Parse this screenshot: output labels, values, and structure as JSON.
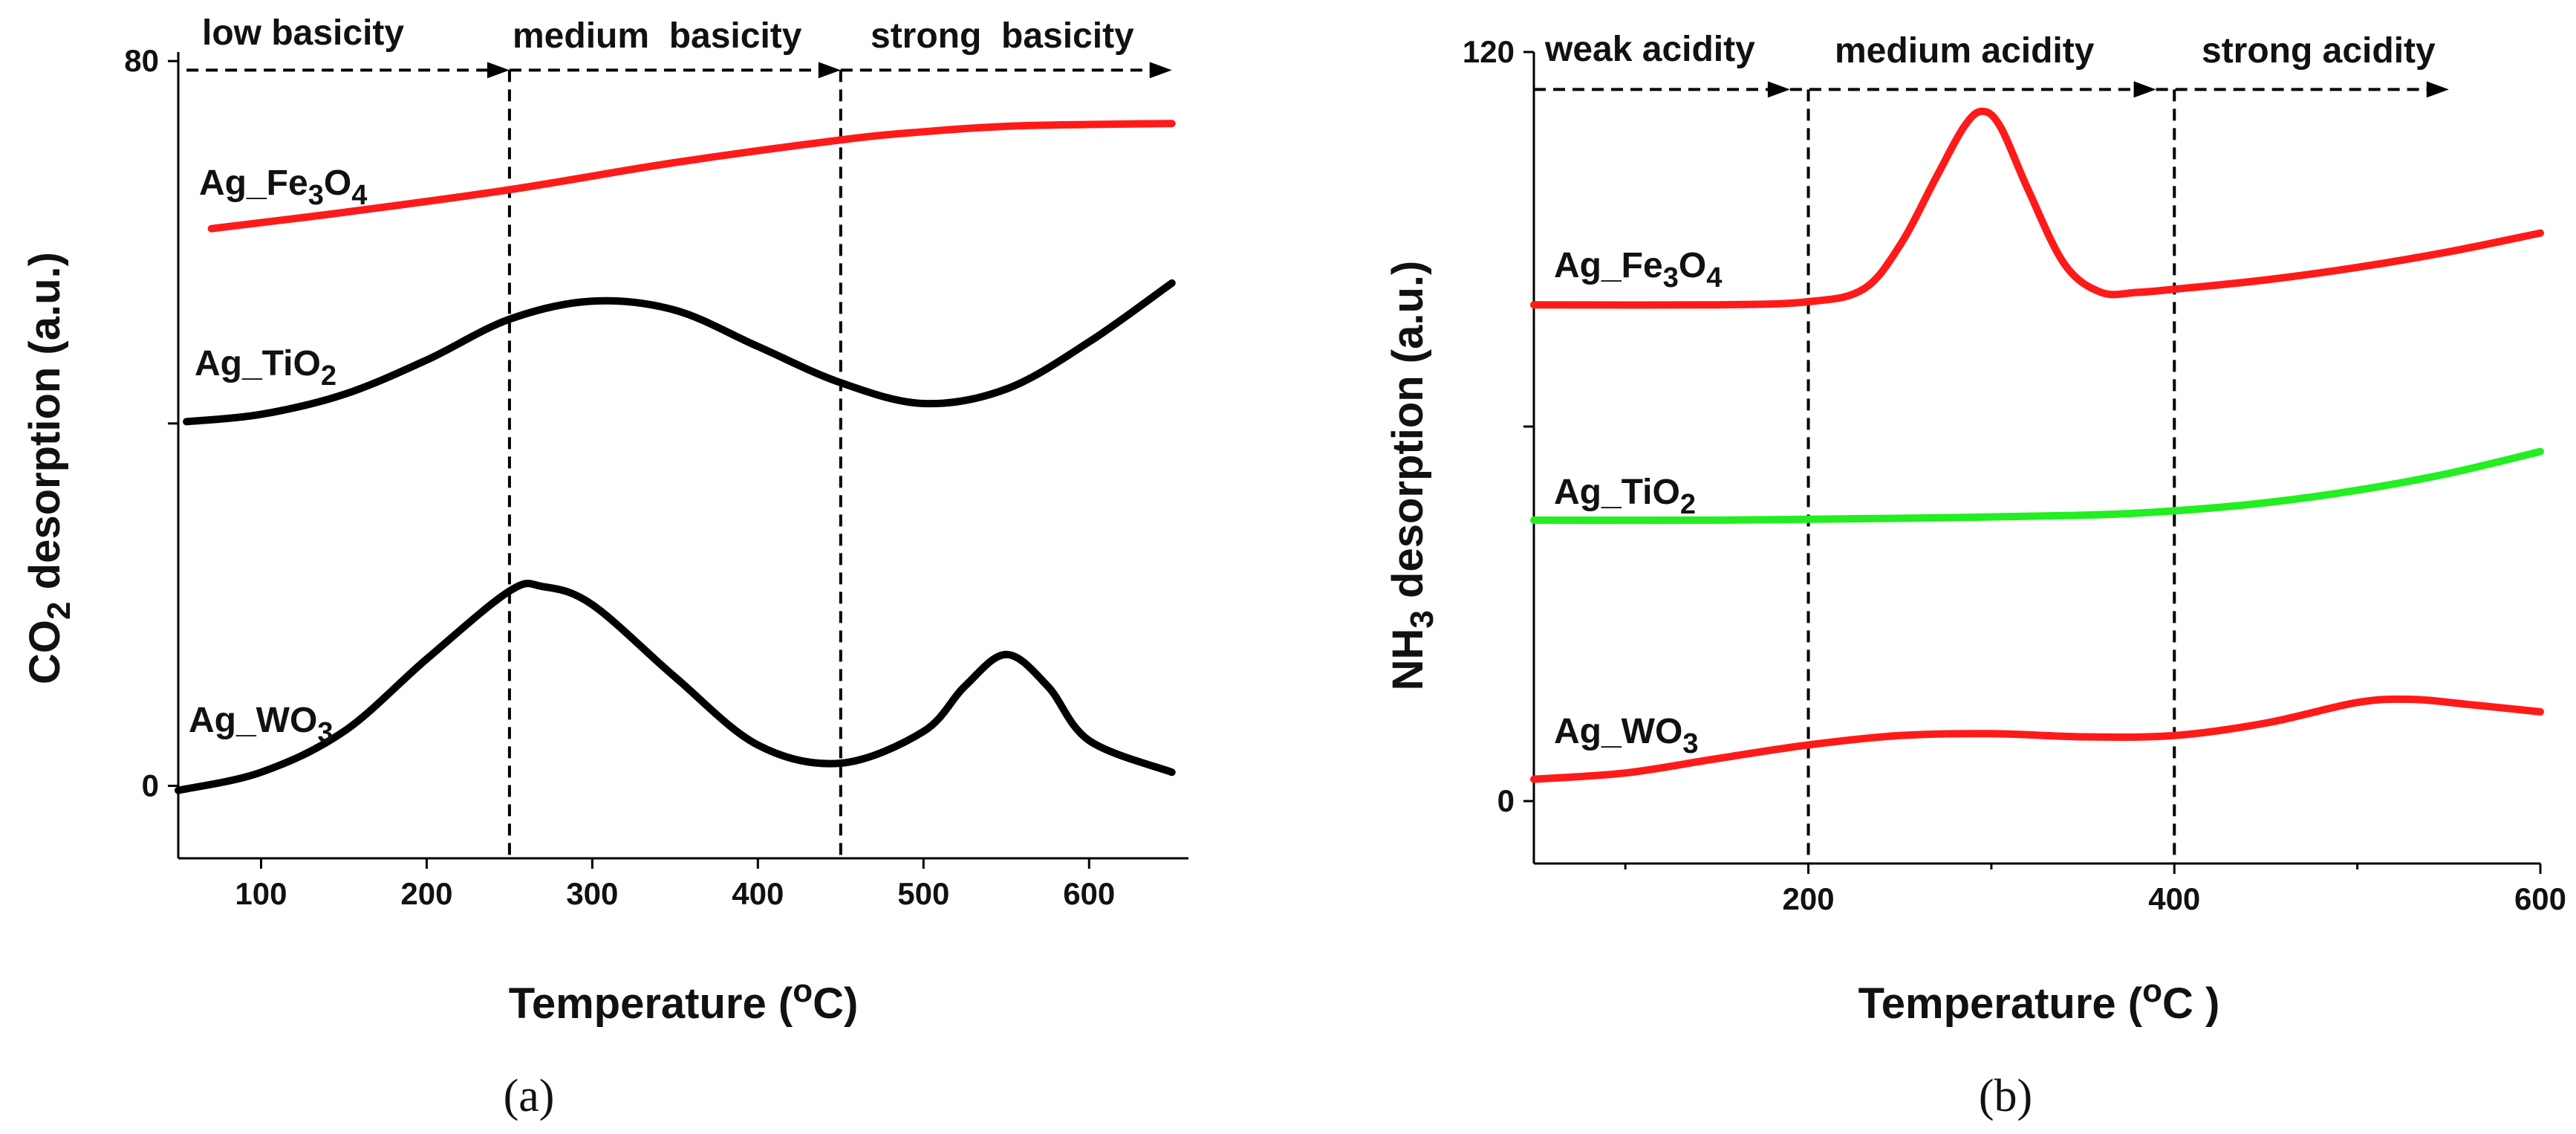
{
  "chart_data": [
    {
      "type": "line",
      "panel_label": "(a)",
      "xlabel": "Temperature",
      "xlabel_unit": "(°C)",
      "ylabel": "CO₂ desorption (a.u.)",
      "xlim": [
        50,
        660
      ],
      "ylim": [
        -8,
        81
      ],
      "xticks": [
        100,
        200,
        300,
        400,
        500,
        600
      ],
      "xtick_labels": [
        "100",
        "200",
        "300",
        "400",
        "500",
        "600"
      ],
      "yticks": [
        0,
        40,
        80
      ],
      "ytick_labels": [
        "0",
        "",
        "80"
      ],
      "region_dividers": [
        250,
        450
      ],
      "region_arrow_y": 79,
      "regions": [
        {
          "label": "low basicity",
          "x_start": 55,
          "x_end": 250
        },
        {
          "label": "medium  basicity",
          "x_start": 250,
          "x_end": 450
        },
        {
          "label": "strong  basicity",
          "x_start": 450,
          "x_end": 650
        }
      ],
      "series": [
        {
          "name": "Ag_Fe₃O₄",
          "color": "#ff1a1a",
          "x": [
            70,
            150,
            250,
            350,
            450,
            500,
            550,
            600,
            650
          ],
          "y": [
            61.5,
            63.3,
            65.8,
            68.8,
            71.3,
            72.2,
            72.8,
            73.0,
            73.1
          ]
        },
        {
          "name": "Ag_TiO₂",
          "color": "#000000",
          "x": [
            55,
            100,
            150,
            200,
            250,
            300,
            350,
            400,
            450,
            500,
            550,
            600,
            650
          ],
          "y": [
            40.2,
            41.0,
            43.2,
            47.0,
            51.5,
            53.5,
            52.5,
            48.5,
            44.5,
            42.2,
            43.8,
            49.0,
            55.5
          ]
        },
        {
          "name": "Ag_WO₃",
          "color": "#000000",
          "x": [
            50,
            100,
            150,
            200,
            250,
            270,
            300,
            350,
            400,
            450,
            500,
            525,
            550,
            575,
            600,
            650
          ],
          "y": [
            -0.5,
            1.5,
            6.0,
            14.0,
            21.5,
            22.0,
            20.0,
            12.0,
            4.5,
            2.5,
            6.0,
            11.0,
            14.5,
            11.0,
            5.0,
            1.5
          ]
        }
      ],
      "series_labels": [
        "Ag_Fe3O4",
        "Ag_TiO2",
        "Ag_WO3"
      ]
    },
    {
      "type": "line",
      "panel_label": "(b)",
      "xlabel": "Temperature",
      "xlabel_unit": "(°C )",
      "ylabel": "NH₃ desorption (a.u.)",
      "xlim": [
        50,
        600
      ],
      "ylim": [
        -10,
        120
      ],
      "xticks": [
        200,
        400,
        600
      ],
      "xtick_labels": [
        "200",
        "400",
        "600"
      ],
      "minor_xticks": [
        100,
        300,
        500
      ],
      "yticks": [
        0,
        60,
        120
      ],
      "ytick_labels": [
        "0",
        "",
        "120"
      ],
      "region_dividers": [
        200,
        400
      ],
      "region_arrow_y": 114,
      "regions": [
        {
          "label": "weak acidity",
          "x_start": 50,
          "x_end": 190
        },
        {
          "label": "medium acidity",
          "x_start": 190,
          "x_end": 390
        },
        {
          "label": "strong acidity",
          "x_start": 390,
          "x_end": 550
        }
      ],
      "series": [
        {
          "name": "Ag_Fe₃O₄",
          "color": "#ff1a1a",
          "x": [
            50,
            150,
            200,
            230,
            250,
            270,
            285,
            295,
            305,
            320,
            340,
            360,
            380,
            400,
            450,
            500,
            550,
            600
          ],
          "y": [
            79.5,
            79.5,
            80.0,
            82.0,
            89.0,
            100.0,
            108.0,
            110.5,
            108.0,
            98.0,
            86.0,
            81.5,
            81.5,
            82.0,
            83.5,
            85.5,
            88.0,
            91.0
          ]
        },
        {
          "name": "Ag_TiO₂",
          "color": "#22ee22",
          "x": [
            50,
            150,
            250,
            350,
            400,
            450,
            500,
            550,
            600
          ],
          "y": [
            45.0,
            45.0,
            45.3,
            45.8,
            46.5,
            47.8,
            49.8,
            52.5,
            56.0
          ]
        },
        {
          "name": "Ag_WO₃",
          "color": "#ff1a1a",
          "x": [
            50,
            100,
            150,
            200,
            250,
            300,
            350,
            400,
            450,
            500,
            530,
            560,
            600
          ],
          "y": [
            3.5,
            4.5,
            6.8,
            9.0,
            10.5,
            10.8,
            10.3,
            10.5,
            12.5,
            15.8,
            16.3,
            15.5,
            14.3
          ]
        }
      ],
      "series_labels": [
        "Ag_Fe3O4",
        "Ag_TiO2",
        "Ag_WO3"
      ]
    }
  ]
}
